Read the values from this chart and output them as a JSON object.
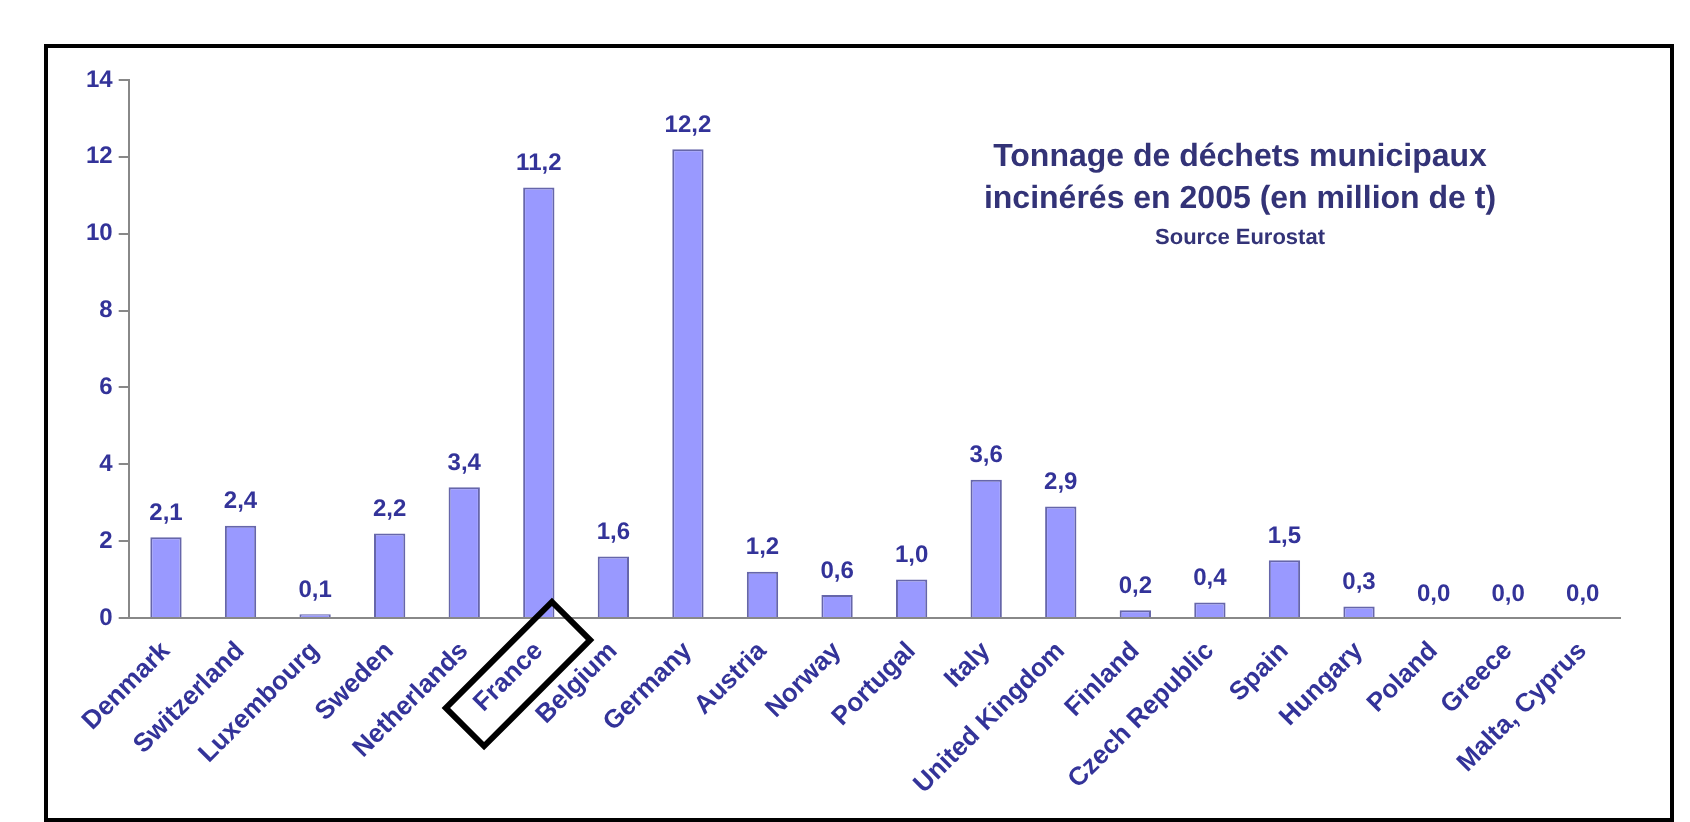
{
  "chart_data": {
    "type": "bar",
    "title": "Tonnage de déchets municipaux incinérés en 2005 (en million de t)",
    "annotations": [
      "Source Eurostat"
    ],
    "categories": [
      "Denmark",
      "Switzerland",
      "Luxembourg",
      "Sweden",
      "Netherlands",
      "France",
      "Belgium",
      "Germany",
      "Austria",
      "Norway",
      "Portugal",
      "Italy",
      "United Kingdom",
      "Finland",
      "Czech Republic",
      "Spain",
      "Hungary",
      "Poland",
      "Greece",
      "Malta, Cyprus"
    ],
    "values": [
      2.1,
      2.4,
      0.1,
      2.2,
      3.4,
      11.2,
      1.6,
      12.2,
      1.2,
      0.6,
      1.0,
      3.6,
      2.9,
      0.2,
      0.4,
      1.5,
      0.3,
      0.0,
      0.0,
      0.0
    ],
    "value_labels": [
      "2,1",
      "2,4",
      "0,1",
      "2,2",
      "3,4",
      "11,2",
      "1,6",
      "12,2",
      "1,2",
      "0,6",
      "1,0",
      "3,6",
      "2,9",
      "0,2",
      "0,4",
      "1,5",
      "0,3",
      "0,0",
      "0,0",
      "0,0"
    ],
    "color": "#9999ff",
    "ylim": [
      0,
      14
    ],
    "yticks": [
      0,
      2,
      4,
      6,
      8,
      10,
      12,
      14
    ],
    "grid": false,
    "legend": false
  }
}
